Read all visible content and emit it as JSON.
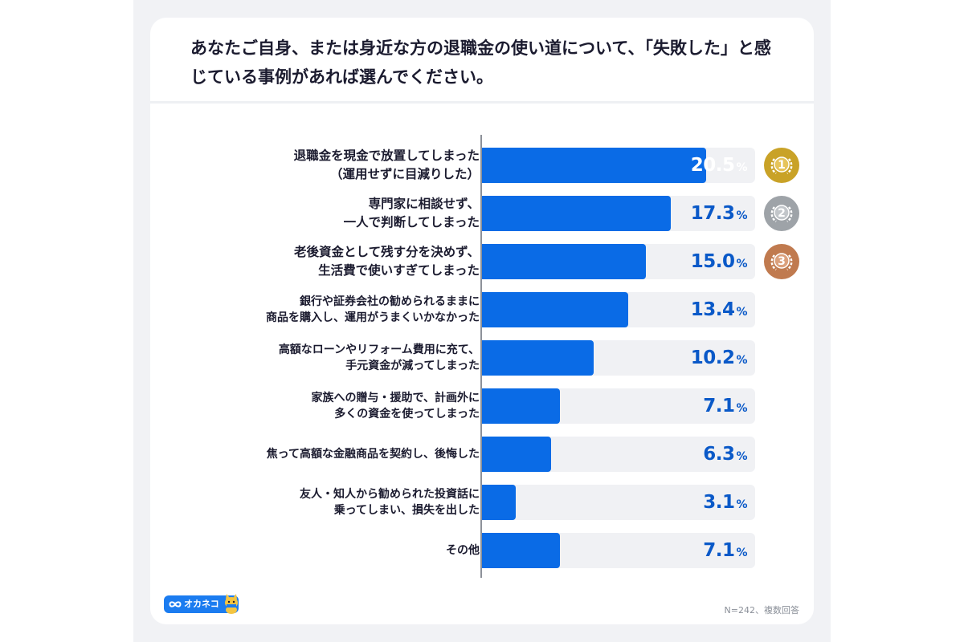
{
  "title": {
    "line1": "あなたご自身、または身近な方の退職金の使い道について、「失敗した」と感",
    "line2": "じている事例があれば選んでください。"
  },
  "note": "N=242、複数回答",
  "logo": {
    "text": "オカネコ",
    "icon": "infinity-icon"
  },
  "colors": {
    "bar": "#0a6be6",
    "track": "#f0f1f4",
    "value": "#0a59c8",
    "gold": "#c9a227",
    "silver": "#9ea3a8",
    "bronze": "#c07a4f"
  },
  "chart_data": {
    "type": "bar",
    "orientation": "horizontal",
    "xlim": [
      0,
      25
    ],
    "unit": "%",
    "categories": [
      [
        "退職金を現金で放置してしまった",
        "（運用せずに目減りした）"
      ],
      [
        "専門家に相談せず、",
        "一人で判断してしまった"
      ],
      [
        "老後資金として残す分を決めず、",
        "生活費で使いすぎてしまった"
      ],
      [
        "銀行や証券会社の勧められるままに",
        "商品を購入し、運用がうまくいかなかった"
      ],
      [
        "高額なローンやリフォーム費用に充て、",
        "手元資金が減ってしまった"
      ],
      [
        "家族への贈与・援助で、計画外に",
        "多くの資金を使ってしまった"
      ],
      [
        "焦って高額な金融商品を契約し、後悔した"
      ],
      [
        "友人・知人から勧められた投資話に",
        "乗ってしまい、損失を出した"
      ],
      [
        "その他"
      ]
    ],
    "values": [
      20.5,
      17.3,
      15.0,
      13.4,
      10.2,
      7.1,
      6.3,
      3.1,
      7.1
    ],
    "value_labels": [
      "20.5",
      "17.3",
      "15.0",
      "13.4",
      "10.2",
      "7.1",
      "6.3",
      "3.1",
      "7.1"
    ],
    "ranks": [
      {
        "rank": "1",
        "medal": "gold"
      },
      {
        "rank": "2",
        "medal": "silver"
      },
      {
        "rank": "3",
        "medal": "bronze"
      }
    ]
  }
}
